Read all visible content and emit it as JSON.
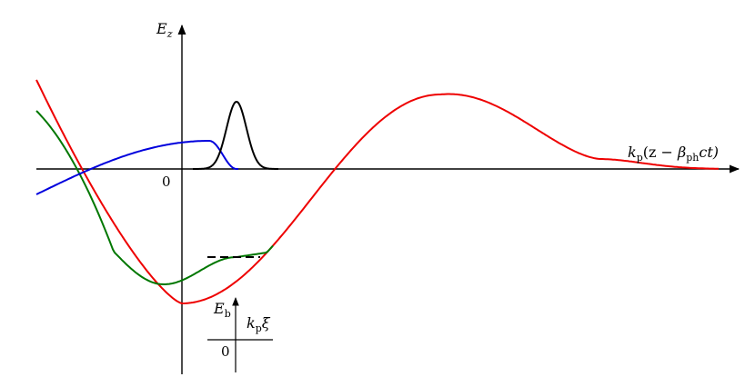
{
  "axes": {
    "y_label": {
      "main": "E",
      "sub": "z"
    },
    "x_label": {
      "k": "k",
      "k_sub": "p",
      "open": "(z − ",
      "beta": "β",
      "beta_sub": "ph",
      "close": "ct)"
    },
    "origin": "0"
  },
  "inset": {
    "y_label": {
      "main": "E",
      "sub": "b"
    },
    "x_label": {
      "k": "k",
      "k_sub": "p",
      "xi": "ξ"
    },
    "origin": "0"
  },
  "colors": {
    "axes": "#000000",
    "red_curve": "#ee0000",
    "green_curve": "#007700",
    "blue_curve": "#0000dd",
    "bunch_curve": "#000000"
  }
}
